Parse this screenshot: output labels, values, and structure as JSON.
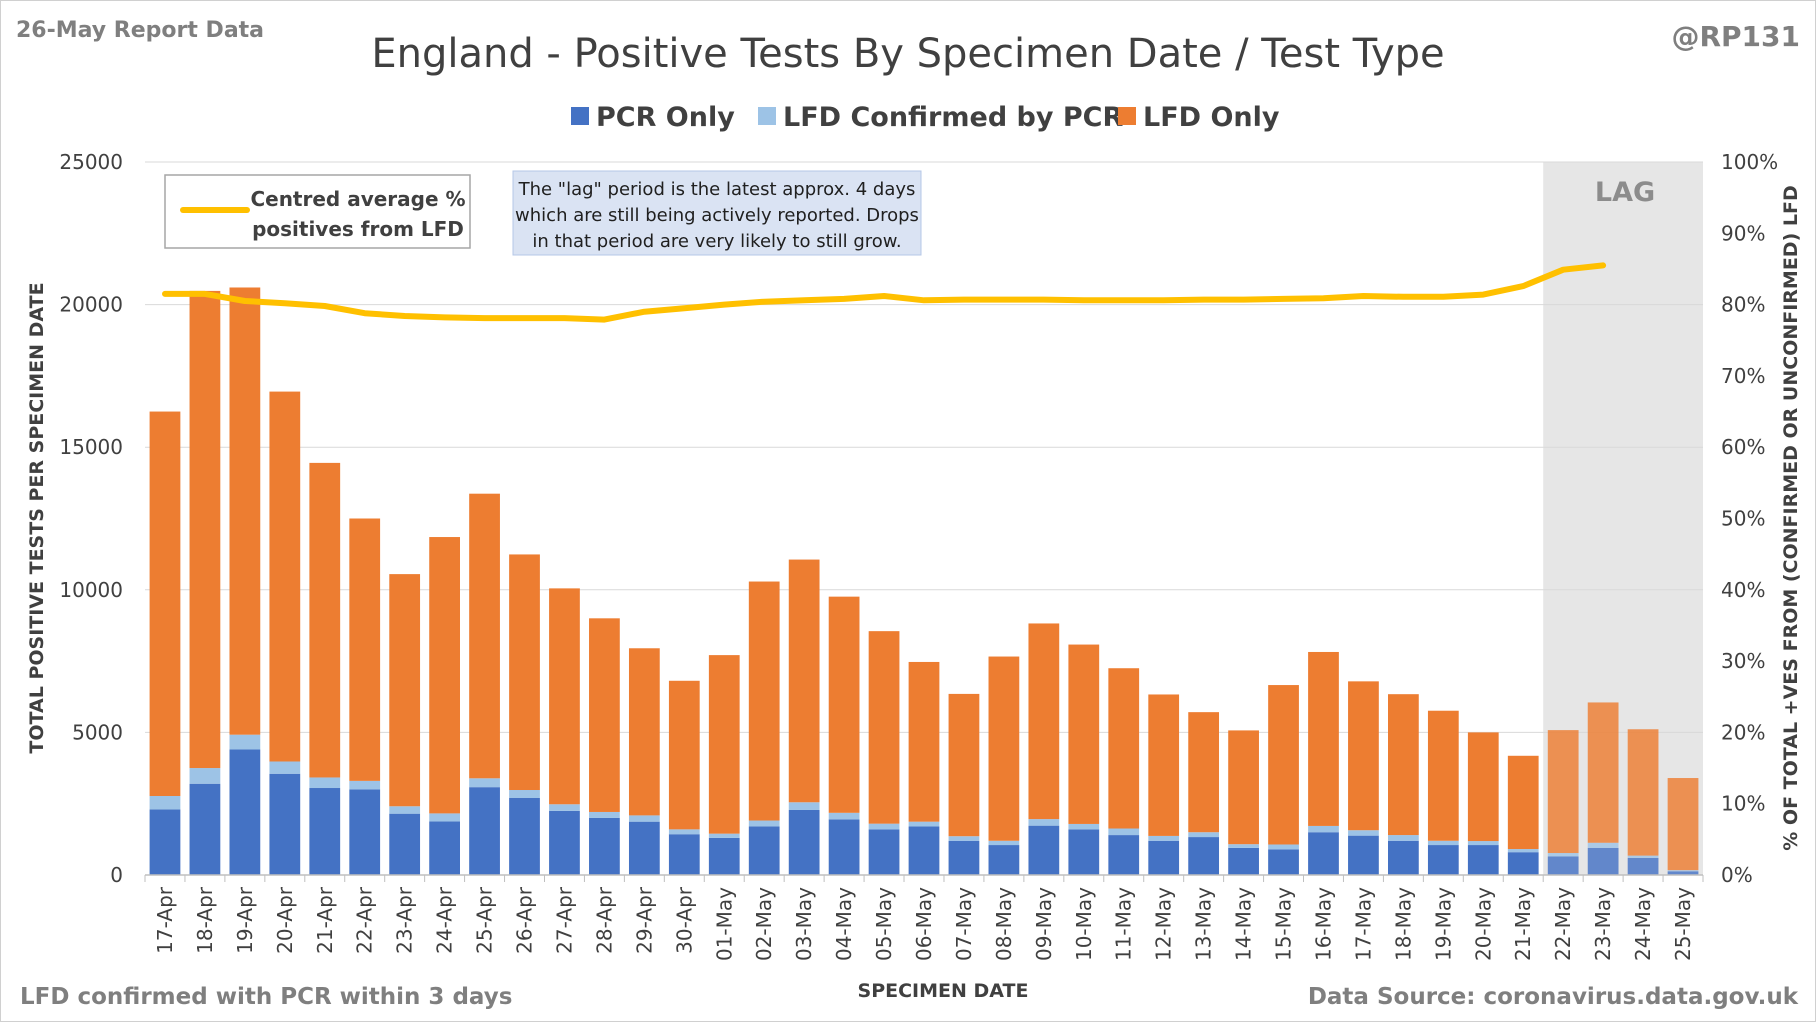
{
  "header": {
    "report_label": "26-May Report Data",
    "handle": "@RP131"
  },
  "footer": {
    "left_note": "LFD confirmed with PCR within 3 days",
    "source": "Data Source: coronavirus.data.gov.uk"
  },
  "colors": {
    "pcr_only": "#4472c4",
    "lfd_confirmed": "#9dc3e6",
    "lfd_only": "#ed7d31",
    "average_line": "#ffc000",
    "lag_shade": "#e6e6e6",
    "note_box": "#dae3f3"
  },
  "annotations": {
    "lag_label": "LAG",
    "lag_note": [
      "The \"lag\" period is the latest approx. 4 days",
      "which are still being actively reported.  Drops",
      "in that period are very likely to still grow."
    ],
    "average_legend": [
      "Centred average %",
      "positives from LFD"
    ]
  },
  "chart_data": {
    "type": "bar",
    "stacked": true,
    "title": "England - Positive Tests By Specimen Date / Test Type",
    "xlabel": "SPECIMEN DATE",
    "ylabel": "TOTAL POSITIVE TESTS PER SPECIMEN DATE",
    "y2label": "% OF TOTAL +VES FROM (CONFIRMED OR UNCONFIRMED) LFD",
    "ylim": [
      0,
      25000
    ],
    "yticks": [
      "0",
      "5000",
      "10000",
      "15000",
      "20000",
      "25000"
    ],
    "y2lim": [
      0,
      100
    ],
    "y2ticks": [
      "0%",
      "10%",
      "20%",
      "30%",
      "40%",
      "50%",
      "60%",
      "70%",
      "80%",
      "90%",
      "100%"
    ],
    "legend_position": "top",
    "grid": true,
    "categories": [
      "17-Apr",
      "18-Apr",
      "19-Apr",
      "20-Apr",
      "21-Apr",
      "22-Apr",
      "23-Apr",
      "24-Apr",
      "25-Apr",
      "26-Apr",
      "27-Apr",
      "28-Apr",
      "29-Apr",
      "30-Apr",
      "01-May",
      "02-May",
      "03-May",
      "04-May",
      "05-May",
      "06-May",
      "07-May",
      "08-May",
      "09-May",
      "10-May",
      "11-May",
      "12-May",
      "13-May",
      "14-May",
      "15-May",
      "16-May",
      "17-May",
      "18-May",
      "19-May",
      "20-May",
      "21-May",
      "22-May",
      "23-May",
      "24-May",
      "25-May"
    ],
    "lag_categories": [
      "22-May",
      "23-May",
      "24-May",
      "25-May"
    ],
    "series": [
      {
        "name": "PCR Only",
        "values": [
          2300,
          3200,
          4400,
          3550,
          3050,
          3000,
          2150,
          1880,
          3080,
          2700,
          2250,
          2000,
          1870,
          1430,
          1300,
          1700,
          2280,
          1950,
          1600,
          1700,
          1200,
          1050,
          1730,
          1600,
          1400,
          1200,
          1330,
          950,
          900,
          1500,
          1380,
          1200,
          1050,
          1050,
          800,
          650,
          950,
          600,
          130
        ]
      },
      {
        "name": "LFD Confirmed by PCR",
        "values": [
          470,
          550,
          520,
          430,
          370,
          300,
          260,
          280,
          310,
          280,
          230,
          210,
          220,
          170,
          150,
          210,
          270,
          230,
          200,
          170,
          160,
          150,
          230,
          190,
          230,
          170,
          170,
          130,
          170,
          220,
          190,
          200,
          150,
          140,
          110,
          120,
          180,
          80,
          40
        ]
      },
      {
        "name": "LFD Only",
        "values": [
          13480,
          16730,
          15680,
          12970,
          11030,
          9200,
          8140,
          9690,
          9980,
          8260,
          7570,
          6790,
          5860,
          5210,
          6260,
          8380,
          8510,
          7580,
          6750,
          5600,
          4990,
          6460,
          6860,
          6290,
          5620,
          4960,
          4210,
          3990,
          5590,
          6100,
          5220,
          4940,
          4560,
          3810,
          3270,
          4310,
          4920,
          4430,
          3230
        ]
      },
      {
        "name": "Centred average % positives from LFD",
        "axis": "secondary",
        "values": [
          81.5,
          81.5,
          80.5,
          80.2,
          79.8,
          78.8,
          78.4,
          78.2,
          78.1,
          78.1,
          78.1,
          77.9,
          79.0,
          79.5,
          80.0,
          80.4,
          80.6,
          80.8,
          81.2,
          80.6,
          80.7,
          80.7,
          80.7,
          80.6,
          80.6,
          80.6,
          80.7,
          80.7,
          80.8,
          80.9,
          81.2,
          81.1,
          81.1,
          81.4,
          82.6,
          84.9,
          85.5,
          null,
          null
        ]
      }
    ]
  }
}
